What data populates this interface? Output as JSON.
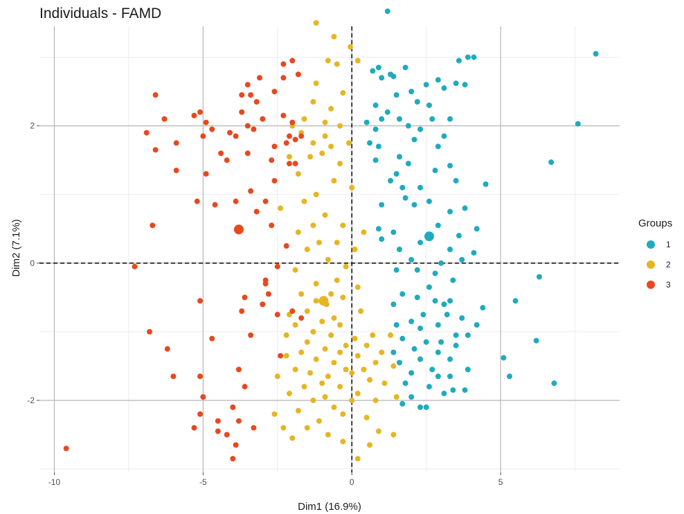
{
  "chart_data": {
    "type": "scatter",
    "title": "Individuals - FAMD",
    "xlabel": "Dim1 (16.9%)",
    "ylabel": "Dim2 (7.1%)",
    "xlim": [
      -10.5,
      9.0
    ],
    "ylim": [
      -3.05,
      3.45
    ],
    "x_ticks": [
      -10,
      -5,
      0,
      5
    ],
    "x_tick_labels": [
      "-10",
      "-5",
      "0",
      "5"
    ],
    "y_ticks": [
      -2,
      0,
      2
    ],
    "y_tick_labels": [
      "-2",
      "0",
      "2"
    ],
    "grid": true,
    "reference_lines": {
      "x": 0,
      "y": 0
    },
    "legend": {
      "title": "Groups",
      "position": "right"
    },
    "colors": {
      "1": "#1fabbf",
      "2": "#e6b522",
      "3": "#e8481f"
    },
    "series": [
      {
        "name": "1",
        "color": "#1fabbf",
        "centroid": [
          2.6,
          0.39
        ],
        "points": [
          [
            1.2,
            3.67
          ],
          [
            8.2,
            3.05
          ],
          [
            3.9,
            3.0
          ],
          [
            4.1,
            3.0
          ],
          [
            3.6,
            2.95
          ],
          [
            1.8,
            2.85
          ],
          [
            0.9,
            2.85
          ],
          [
            0.7,
            2.8
          ],
          [
            1.3,
            2.75
          ],
          [
            1.4,
            2.72
          ],
          [
            1.0,
            2.7
          ],
          [
            2.9,
            2.67
          ],
          [
            3.5,
            2.62
          ],
          [
            2.5,
            2.6
          ],
          [
            3.1,
            2.55
          ],
          [
            2.0,
            2.5
          ],
          [
            1.5,
            2.45
          ],
          [
            3.8,
            2.6
          ],
          [
            0.8,
            2.3
          ],
          [
            1.2,
            2.2
          ],
          [
            1.6,
            2.1
          ],
          [
            2.2,
            2.35
          ],
          [
            2.7,
            2.1
          ],
          [
            2.3,
            1.95
          ],
          [
            3.3,
            2.1
          ],
          [
            1.9,
            2.0
          ],
          [
            1.0,
            2.1
          ],
          [
            7.6,
            2.03
          ],
          [
            0.5,
            2.05
          ],
          [
            2.6,
            2.3
          ],
          [
            0.8,
            1.95
          ],
          [
            2.1,
            1.8
          ],
          [
            3.1,
            1.85
          ],
          [
            0.9,
            1.7
          ],
          [
            0.6,
            1.75
          ],
          [
            2.9,
            1.7
          ],
          [
            1.6,
            1.55
          ],
          [
            0.8,
            1.5
          ],
          [
            1.9,
            1.45
          ],
          [
            1.5,
            1.3
          ],
          [
            6.7,
            1.47
          ],
          [
            3.3,
            1.42
          ],
          [
            2.8,
            1.35
          ],
          [
            1.3,
            1.2
          ],
          [
            2.3,
            1.1
          ],
          [
            3.5,
            1.2
          ],
          [
            1.7,
            1.1
          ],
          [
            1.8,
            0.95
          ],
          [
            4.5,
            1.15
          ],
          [
            2.6,
            0.9
          ],
          [
            2.1,
            0.85
          ],
          [
            3.3,
            0.75
          ],
          [
            1.0,
            0.85
          ],
          [
            3.8,
            0.8
          ],
          [
            0.9,
            0.5
          ],
          [
            1.4,
            0.45
          ],
          [
            1.0,
            0.35
          ],
          [
            2.9,
            0.55
          ],
          [
            3.6,
            0.4
          ],
          [
            4.2,
            0.5
          ],
          [
            2.3,
            0.3
          ],
          [
            1.6,
            0.2
          ],
          [
            3.3,
            0.2
          ],
          [
            4.1,
            0.15
          ],
          [
            2.0,
            0.05
          ],
          [
            3.0,
            0.0
          ],
          [
            2.2,
            -0.1
          ],
          [
            1.5,
            -0.1
          ],
          [
            3.7,
            0.05
          ],
          [
            2.8,
            -0.15
          ],
          [
            3.4,
            -0.25
          ],
          [
            6.3,
            -0.2
          ],
          [
            2.6,
            -0.35
          ],
          [
            1.7,
            -0.45
          ],
          [
            2.8,
            -0.55
          ],
          [
            3.3,
            -0.55
          ],
          [
            2.2,
            -0.5
          ],
          [
            3.1,
            -0.6
          ],
          [
            1.4,
            -0.6
          ],
          [
            5.5,
            -0.55
          ],
          [
            4.4,
            -0.65
          ],
          [
            2.4,
            -0.75
          ],
          [
            3.2,
            -0.75
          ],
          [
            2.0,
            -0.85
          ],
          [
            3.7,
            -0.8
          ],
          [
            2.9,
            -0.9
          ],
          [
            1.5,
            -0.9
          ],
          [
            2.3,
            -0.95
          ],
          [
            4.2,
            -0.9
          ],
          [
            3.5,
            -1.05
          ],
          [
            1.7,
            -1.1
          ],
          [
            2.5,
            -1.15
          ],
          [
            3.0,
            -1.15
          ],
          [
            6.2,
            -1.13
          ],
          [
            3.9,
            -1.05
          ],
          [
            2.1,
            -1.25
          ],
          [
            3.5,
            -1.2
          ],
          [
            1.4,
            -1.3
          ],
          [
            2.9,
            -1.3
          ],
          [
            2.3,
            -1.4
          ],
          [
            3.3,
            -1.4
          ],
          [
            5.1,
            -1.38
          ],
          [
            1.6,
            -1.45
          ],
          [
            3.9,
            -1.55
          ],
          [
            2.7,
            -1.55
          ],
          [
            2.0,
            -1.6
          ],
          [
            2.9,
            -1.65
          ],
          [
            3.3,
            -1.65
          ],
          [
            5.3,
            -1.65
          ],
          [
            6.8,
            -1.75
          ],
          [
            1.8,
            -1.75
          ],
          [
            2.6,
            -1.8
          ],
          [
            3.4,
            -1.85
          ],
          [
            3.8,
            -1.85
          ],
          [
            3.1,
            -1.9
          ],
          [
            2.0,
            -1.95
          ],
          [
            1.7,
            -2.05
          ],
          [
            2.3,
            -2.1
          ],
          [
            2.5,
            -2.1
          ]
        ]
      },
      {
        "name": "2",
        "color": "#e6b522",
        "centroid": [
          -0.95,
          -0.55
        ],
        "points": [
          [
            -1.2,
            3.5
          ],
          [
            -0.6,
            3.3
          ],
          [
            -0.05,
            3.15
          ],
          [
            -0.8,
            2.95
          ],
          [
            -0.5,
            2.9
          ],
          [
            0.2,
            2.95
          ],
          [
            -1.8,
            2.75
          ],
          [
            -1.2,
            2.62
          ],
          [
            -0.3,
            2.48
          ],
          [
            -1.3,
            2.35
          ],
          [
            -0.7,
            2.25
          ],
          [
            -1.6,
            2.1
          ],
          [
            -0.9,
            2.05
          ],
          [
            -0.4,
            2.0
          ],
          [
            -2.0,
            2.0
          ],
          [
            -1.7,
            1.9
          ],
          [
            -0.9,
            1.85
          ],
          [
            -1.3,
            1.75
          ],
          [
            -0.7,
            1.7
          ],
          [
            -0.1,
            1.75
          ],
          [
            -1.0,
            1.6
          ],
          [
            -2.1,
            1.55
          ],
          [
            -1.4,
            1.55
          ],
          [
            -0.4,
            1.45
          ],
          [
            -1.8,
            1.3
          ],
          [
            -0.6,
            1.2
          ],
          [
            0.0,
            1.1
          ],
          [
            -1.2,
            1.0
          ],
          [
            -1.6,
            0.9
          ],
          [
            -2.4,
            0.8
          ],
          [
            -0.9,
            0.7
          ],
          [
            -1.3,
            0.55
          ],
          [
            -0.3,
            0.55
          ],
          [
            -1.8,
            0.45
          ],
          [
            -0.5,
            0.3
          ],
          [
            -1.1,
            0.3
          ],
          [
            0.4,
            0.45
          ],
          [
            0.1,
            0.2
          ],
          [
            -1.5,
            0.2
          ],
          [
            -0.8,
            0.05
          ],
          [
            -0.2,
            -0.05
          ],
          [
            -1.9,
            -0.1
          ],
          [
            -0.5,
            -0.25
          ],
          [
            -1.2,
            -0.3
          ],
          [
            0.2,
            -0.35
          ],
          [
            -1.7,
            -0.45
          ],
          [
            -0.7,
            -0.45
          ],
          [
            -0.3,
            -0.5
          ],
          [
            -1.2,
            -0.55
          ],
          [
            -0.85,
            -0.6
          ],
          [
            -1.5,
            -0.7
          ],
          [
            -2.1,
            -0.75
          ],
          [
            -0.6,
            -0.8
          ],
          [
            0.3,
            -0.7
          ],
          [
            -1.0,
            -0.85
          ],
          [
            -1.9,
            -0.9
          ],
          [
            -0.4,
            -0.9
          ],
          [
            -1.3,
            -1.0
          ],
          [
            -2.2,
            -1.05
          ],
          [
            0.1,
            -1.1
          ],
          [
            -0.7,
            -1.05
          ],
          [
            -1.5,
            -1.15
          ],
          [
            0.7,
            -1.05
          ],
          [
            1.3,
            -1.05
          ],
          [
            -0.2,
            -1.2
          ],
          [
            -0.9,
            -1.25
          ],
          [
            0.5,
            -1.2
          ],
          [
            -1.7,
            -1.3
          ],
          [
            -0.4,
            -1.3
          ],
          [
            1.0,
            -1.3
          ],
          [
            -2.2,
            -1.35
          ],
          [
            0.2,
            -1.35
          ],
          [
            -1.2,
            -1.4
          ],
          [
            -0.6,
            -1.45
          ],
          [
            0.8,
            -1.45
          ],
          [
            -1.9,
            -1.55
          ],
          [
            -0.2,
            -1.55
          ],
          [
            0.4,
            -1.55
          ],
          [
            1.4,
            -1.5
          ],
          [
            -1.4,
            -1.6
          ],
          [
            -0.8,
            -1.65
          ],
          [
            0.0,
            -1.6
          ],
          [
            -2.5,
            -1.65
          ],
          [
            -1.0,
            -1.75
          ],
          [
            0.6,
            -1.7
          ],
          [
            1.1,
            -1.75
          ],
          [
            -1.6,
            -1.8
          ],
          [
            -0.4,
            -1.8
          ],
          [
            0.2,
            -1.9
          ],
          [
            -2.1,
            -1.9
          ],
          [
            -0.9,
            -1.95
          ],
          [
            1.5,
            -1.95
          ],
          [
            -1.3,
            -2.0
          ],
          [
            0.0,
            -2.0
          ],
          [
            0.8,
            -2.0
          ],
          [
            -0.6,
            -2.1
          ],
          [
            -1.8,
            -2.15
          ],
          [
            -2.6,
            -2.2
          ],
          [
            -0.3,
            -2.2
          ],
          [
            0.5,
            -2.25
          ],
          [
            -1.1,
            -2.3
          ],
          [
            -2.3,
            -2.4
          ],
          [
            -1.5,
            -2.4
          ],
          [
            0.9,
            -2.45
          ],
          [
            -0.8,
            -2.5
          ],
          [
            1.4,
            -2.5
          ],
          [
            -2.0,
            -2.55
          ],
          [
            -0.3,
            -2.6
          ],
          [
            0.6,
            -2.65
          ],
          [
            0.2,
            -2.85
          ]
        ]
      },
      {
        "name": "3",
        "color": "#e8481f",
        "centroid": [
          -3.8,
          0.49
        ],
        "points": [
          [
            -2.3,
            2.9
          ],
          [
            -2.0,
            2.95
          ],
          [
            -1.8,
            2.75
          ],
          [
            -2.3,
            2.7
          ],
          [
            -3.1,
            2.7
          ],
          [
            -3.5,
            2.6
          ],
          [
            -3.4,
            2.45
          ],
          [
            -3.7,
            2.45
          ],
          [
            -2.6,
            2.5
          ],
          [
            -3.2,
            2.35
          ],
          [
            -6.6,
            2.45
          ],
          [
            -5.1,
            2.2
          ],
          [
            -4.9,
            2.05
          ],
          [
            -3.7,
            2.2
          ],
          [
            -3.0,
            2.1
          ],
          [
            -6.3,
            2.1
          ],
          [
            -5.3,
            2.15
          ],
          [
            -2.3,
            2.15
          ],
          [
            -2.0,
            2.05
          ],
          [
            -4.7,
            1.95
          ],
          [
            -3.5,
            2.0
          ],
          [
            -3.3,
            1.95
          ],
          [
            -2.1,
            1.85
          ],
          [
            -4.1,
            1.9
          ],
          [
            -3.9,
            1.85
          ],
          [
            -5.0,
            1.85
          ],
          [
            -6.9,
            1.9
          ],
          [
            -1.7,
            1.85
          ],
          [
            -1.9,
            1.8
          ],
          [
            -2.6,
            1.7
          ],
          [
            -5.9,
            1.75
          ],
          [
            -2.2,
            1.75
          ],
          [
            -6.6,
            1.65
          ],
          [
            -3.5,
            1.6
          ],
          [
            -4.4,
            1.6
          ],
          [
            -4.2,
            1.5
          ],
          [
            -2.7,
            1.5
          ],
          [
            -2.1,
            1.45
          ],
          [
            -1.9,
            1.45
          ],
          [
            -5.9,
            1.35
          ],
          [
            -4.9,
            1.3
          ],
          [
            -2.6,
            1.2
          ],
          [
            -3.4,
            1.05
          ],
          [
            -2.9,
            0.9
          ],
          [
            -3.9,
            0.9
          ],
          [
            -4.6,
            0.85
          ],
          [
            -5.2,
            0.9
          ],
          [
            -3.2,
            0.75
          ],
          [
            -6.7,
            0.55
          ],
          [
            -2.7,
            0.55
          ],
          [
            -2.2,
            0.25
          ],
          [
            -7.3,
            -0.05
          ],
          [
            -2.5,
            -0.05
          ],
          [
            -2.9,
            -0.25
          ],
          [
            -2.9,
            -0.3
          ],
          [
            -2.8,
            -0.45
          ],
          [
            -3.6,
            -0.5
          ],
          [
            -5.1,
            -0.55
          ],
          [
            -3.0,
            -0.6
          ],
          [
            -3.7,
            -0.7
          ],
          [
            -2.0,
            -0.7
          ],
          [
            -2.5,
            -0.75
          ],
          [
            -1.7,
            -0.8
          ],
          [
            -6.8,
            -1.0
          ],
          [
            -3.4,
            -1.05
          ],
          [
            -4.7,
            -1.1
          ],
          [
            -6.2,
            -1.25
          ],
          [
            -2.4,
            -1.35
          ],
          [
            -3.8,
            -1.55
          ],
          [
            -6.0,
            -1.65
          ],
          [
            -5.1,
            -1.65
          ],
          [
            -3.6,
            -1.8
          ],
          [
            -5.0,
            -1.95
          ],
          [
            -4.0,
            -2.1
          ],
          [
            -5.1,
            -2.2
          ],
          [
            -4.5,
            -2.3
          ],
          [
            -3.8,
            -2.3
          ],
          [
            -3.3,
            -2.4
          ],
          [
            -5.3,
            -2.4
          ],
          [
            -4.5,
            -2.45
          ],
          [
            -4.2,
            -2.5
          ],
          [
            -3.9,
            -2.65
          ],
          [
            -4.0,
            -2.85
          ],
          [
            -9.6,
            -2.7
          ]
        ]
      }
    ]
  }
}
